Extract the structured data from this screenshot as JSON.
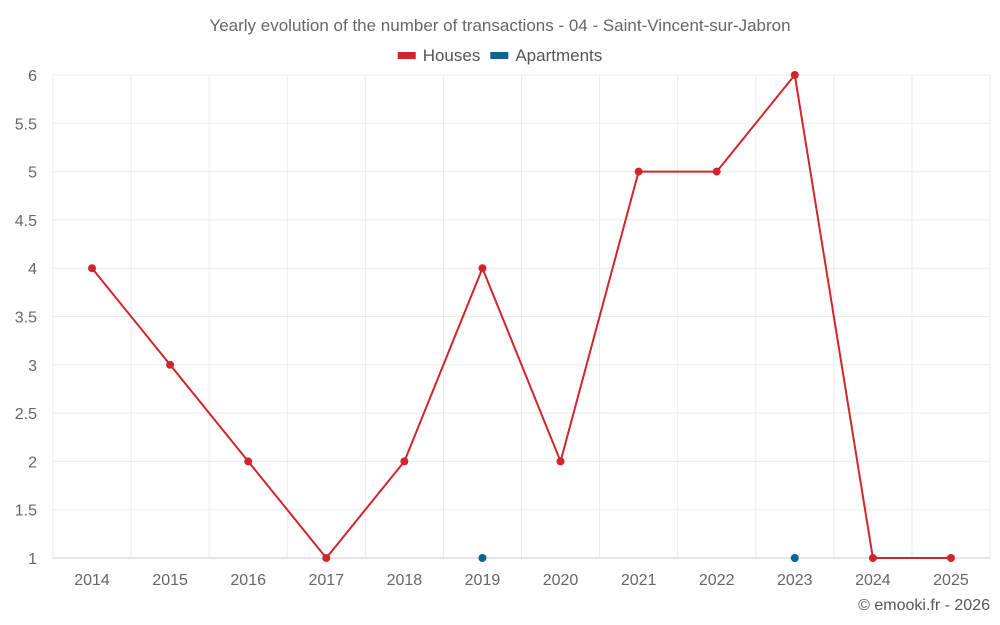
{
  "chart_data": {
    "type": "line",
    "title": "Yearly evolution of the number of transactions - 04 - Saint-Vincent-sur-Jabron",
    "xlabel": "",
    "ylabel": "",
    "categories": [
      "2014",
      "2015",
      "2016",
      "2017",
      "2018",
      "2019",
      "2020",
      "2021",
      "2022",
      "2023",
      "2024",
      "2025"
    ],
    "ylim": [
      1,
      6
    ],
    "yticks": [
      "1",
      "1.5",
      "2",
      "2.5",
      "3",
      "3.5",
      "4",
      "4.5",
      "5",
      "5.5",
      "6"
    ],
    "grid": true,
    "legend_position": "top-center",
    "series": [
      {
        "name": "Houses",
        "color": "#d0262b",
        "values": [
          4,
          3,
          2,
          1,
          2,
          4,
          2,
          5,
          5,
          6,
          1,
          1
        ]
      },
      {
        "name": "Apartments",
        "color": "#0b6391",
        "values": [
          null,
          null,
          null,
          null,
          null,
          1,
          null,
          null,
          null,
          1,
          null,
          null
        ]
      }
    ]
  },
  "credit": "© emooki.fr - 2026"
}
